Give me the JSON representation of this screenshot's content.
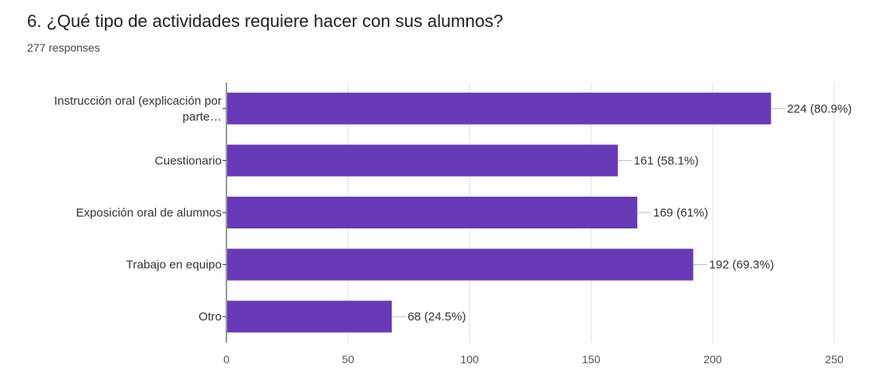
{
  "header": {
    "title": "6. ¿Qué tipo de actividades requiere hacer con sus alumnos?",
    "responses": "277 responses"
  },
  "colors": {
    "bar": "#673ab7",
    "grid": "#e0e0e0",
    "axis": "#333333",
    "leader": "#bdbdbd"
  },
  "chart_data": {
    "type": "bar",
    "orientation": "horizontal",
    "title": "6. ¿Qué tipo de actividades requiere hacer con sus alumnos?",
    "subtitle": "277 responses",
    "categories": [
      [
        "Instrucción oral (explicación por",
        "parte…"
      ],
      [
        "Cuestionario"
      ],
      [
        "Exposición oral de alumnos"
      ],
      [
        "Trabajo en equipo"
      ],
      [
        "Otro"
      ]
    ],
    "values": [
      224,
      161,
      169,
      192,
      68
    ],
    "data_labels": [
      "224 (80.9%)",
      "161 (58.1%)",
      "169 (61%)",
      "192 (69.3%)",
      "68 (24.5%)"
    ],
    "xlim": [
      0,
      250
    ],
    "xticks": [
      0,
      50,
      100,
      150,
      200,
      250
    ],
    "grid": true
  }
}
